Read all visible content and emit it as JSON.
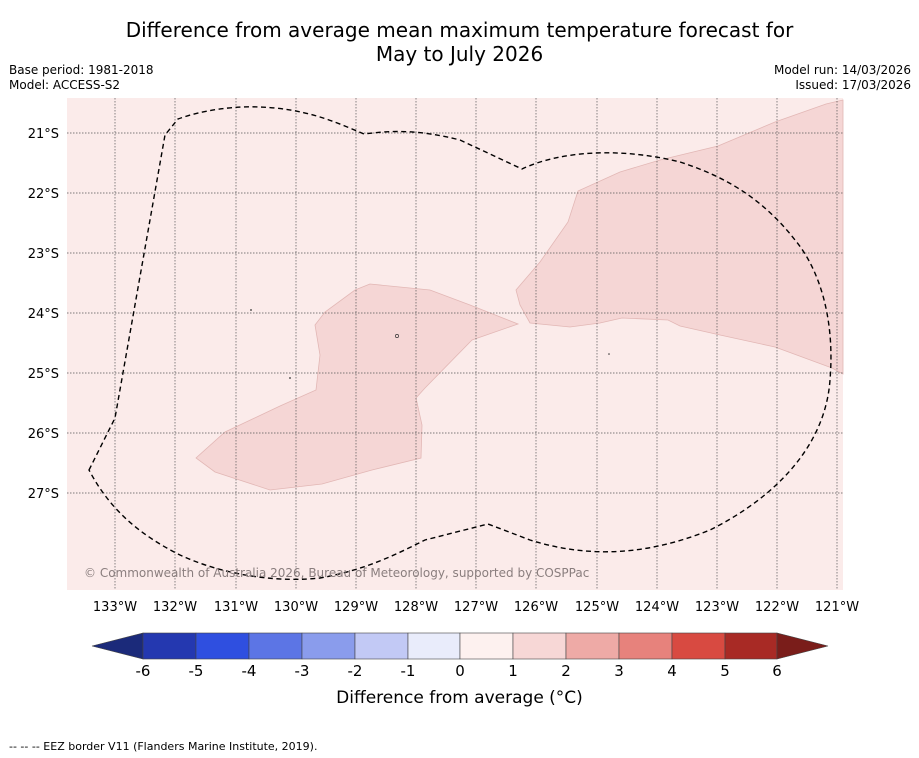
{
  "title_line1": "Difference from average mean maximum temperature forecast for",
  "title_line2": "May to July 2026",
  "base_period": "Base period: 1981-2018",
  "model": "Model: ACCESS-S2",
  "model_run": "Model run: 14/03/2026",
  "issued": "Issued: 17/03/2026",
  "copyright": "© Commonwealth of Australia 2026, Bureau of Meteorology, supported by COSPPac",
  "footnote": "-- -- -- EEZ border V11 (Flanders Marine Institute, 2019).",
  "map": {
    "lat_labels": [
      "21°S",
      "22°S",
      "23°S",
      "24°S",
      "25°S",
      "26°S",
      "27°S"
    ],
    "lon_labels": [
      "133°W",
      "132°W",
      "131°W",
      "130°W",
      "129°W",
      "128°W",
      "127°W",
      "126°W",
      "125°W",
      "124°W",
      "123°W",
      "122°W",
      "121°W"
    ],
    "colors": {
      "background_class": "#fbebea",
      "warm_class": "#f5d6d5",
      "eez_line": "#000000",
      "grid_line": "#555555"
    },
    "classes": [
      {
        "range": "0 to 1",
        "color": "#fbebea"
      },
      {
        "range": "1 to 2",
        "color": "#f5d6d5"
      }
    ]
  },
  "colorbar": {
    "title": "Difference from average (°C)",
    "ticks": [
      "-6",
      "-5",
      "-4",
      "-3",
      "-2",
      "-1",
      "0",
      "1",
      "2",
      "3",
      "4",
      "5",
      "6"
    ],
    "colors": [
      "#1b2a7a",
      "#2438b0",
      "#2f4fe0",
      "#5c75e5",
      "#8a9cec",
      "#c2c9f5",
      "#e9ecfb",
      "#fdf1ef",
      "#f7d7d6",
      "#eeaaa6",
      "#e7827c",
      "#d84a41",
      "#a82a25",
      "#7a1d1a"
    ]
  }
}
